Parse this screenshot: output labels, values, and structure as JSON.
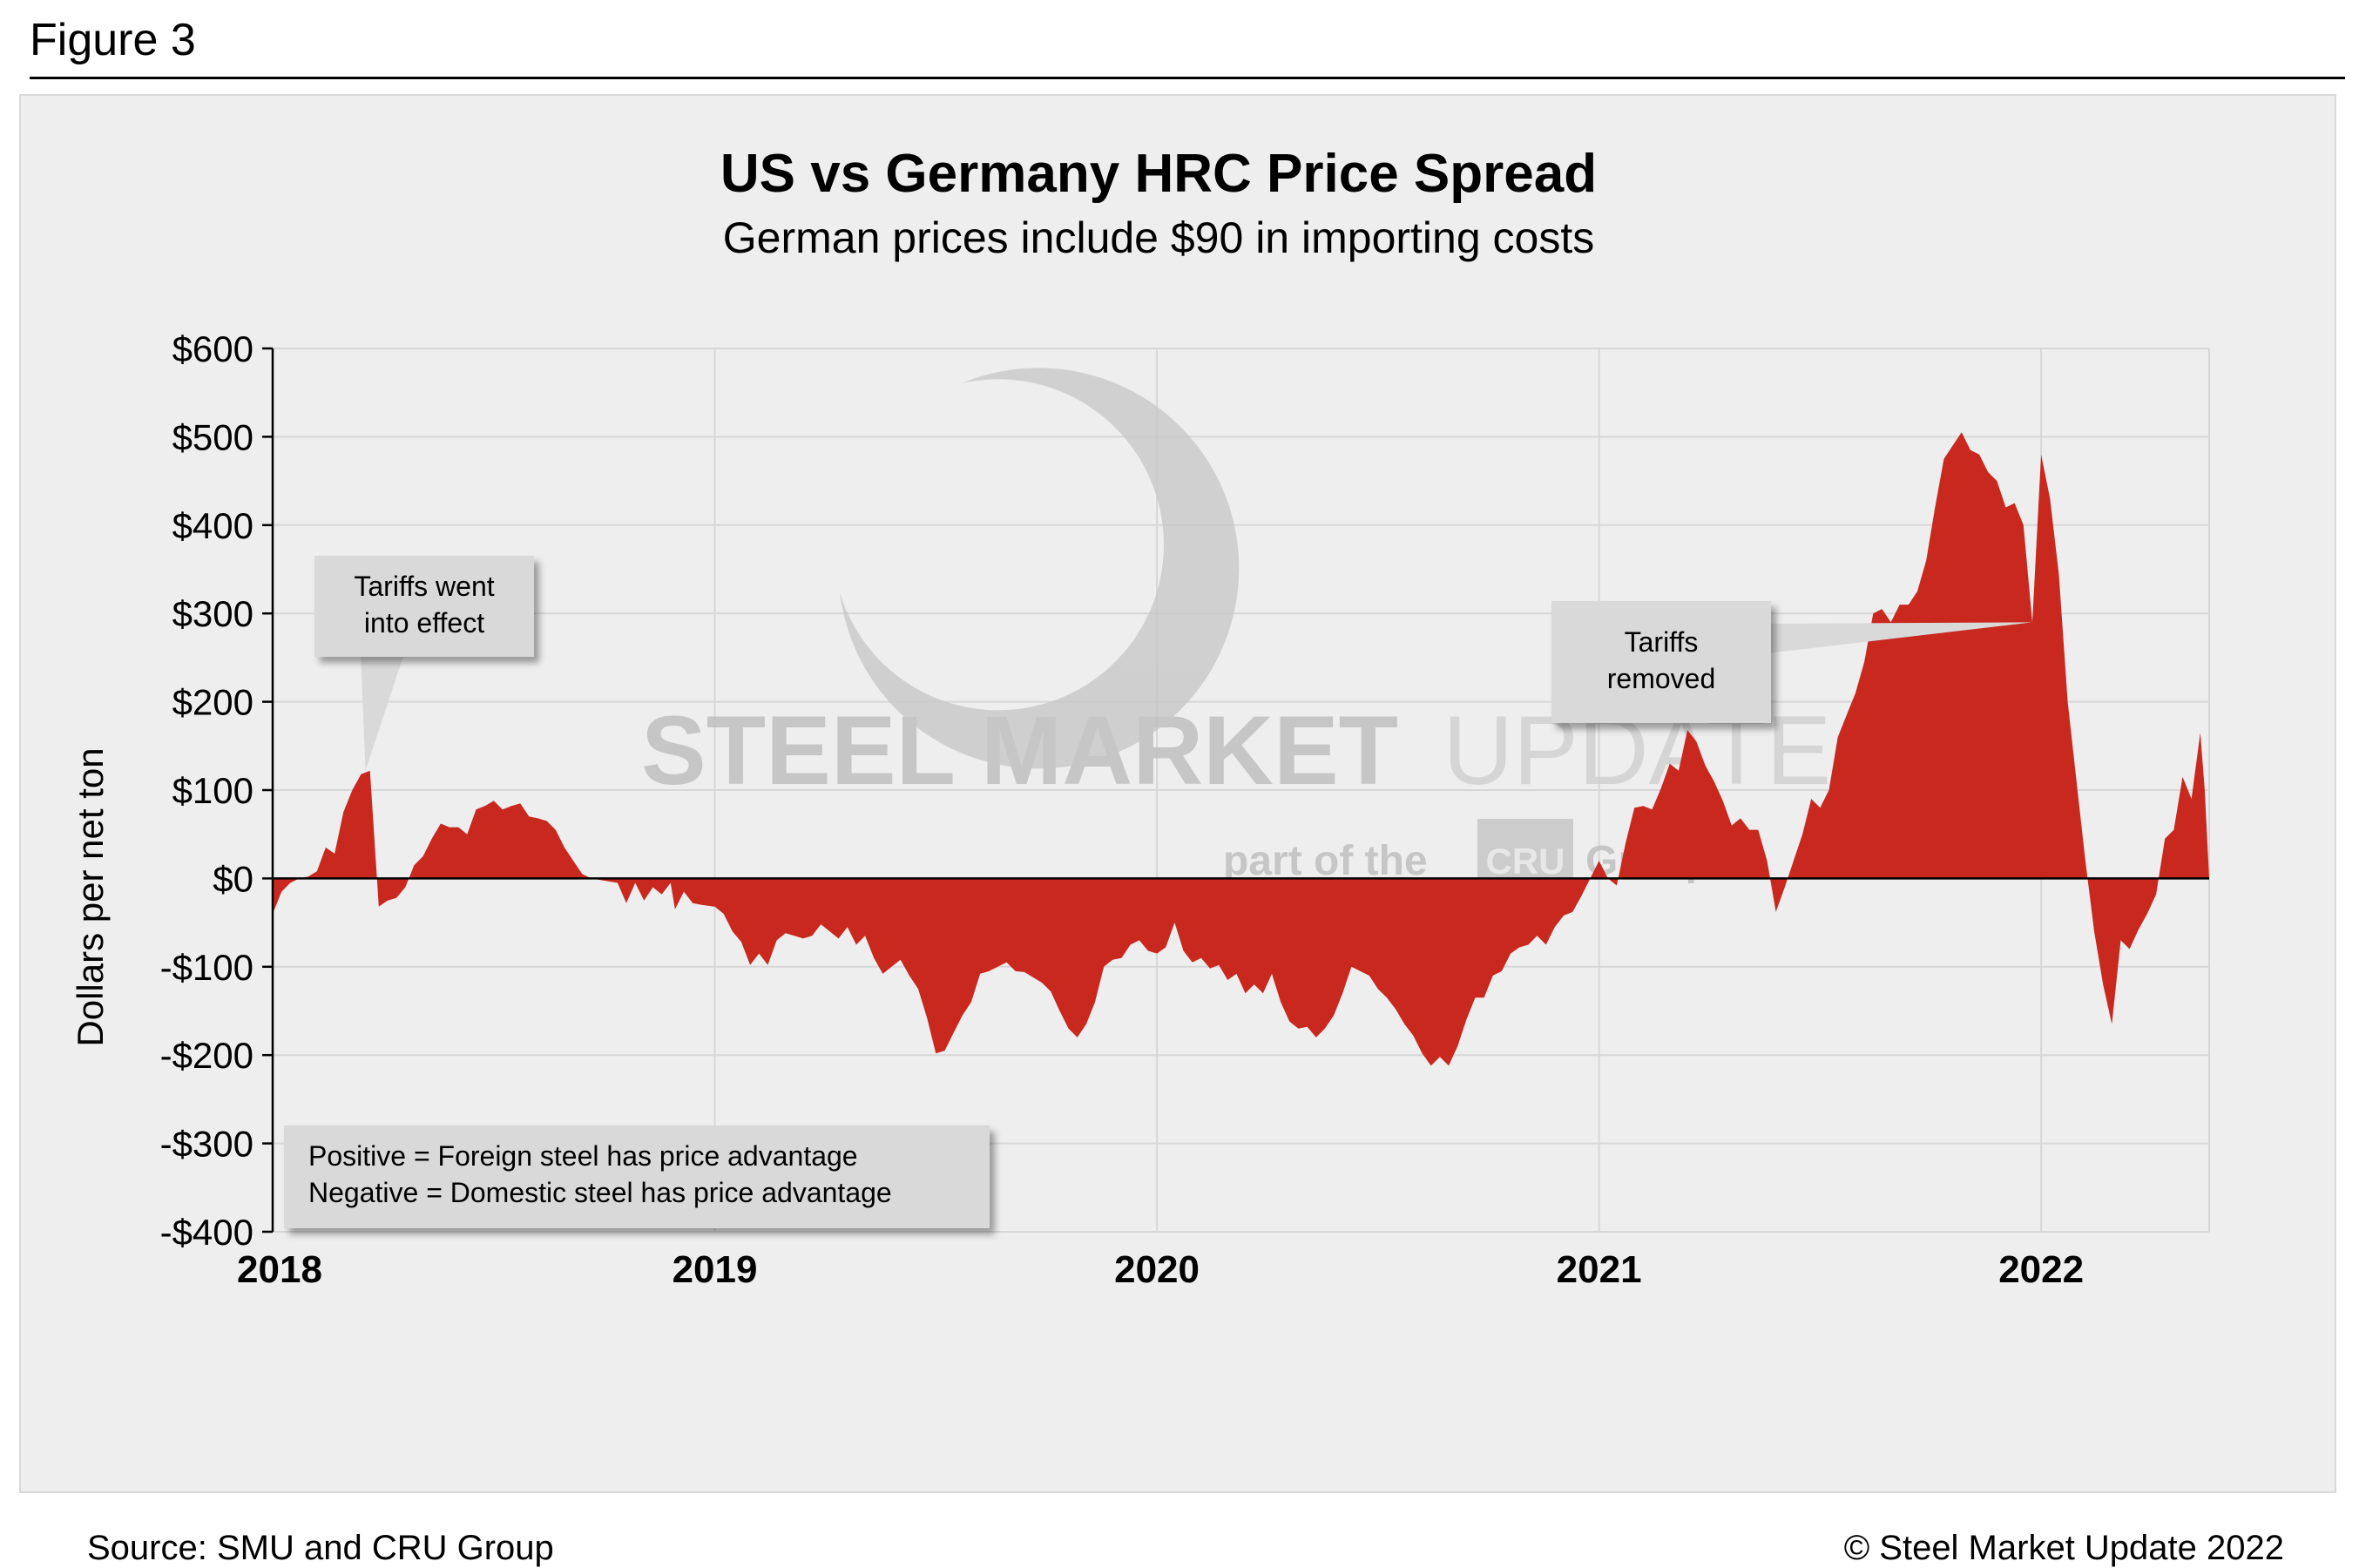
{
  "figure_label": "Figure 3",
  "source": "Source: SMU and CRU Group",
  "copyright": "© Steel Market Update 2022",
  "watermark": {
    "line1_bold": "STEEL MARKET",
    "line1_light": "UPDATE",
    "line2_pre": "part of the",
    "line2_logo": "CRU",
    "line2_post": "Group"
  },
  "colors": {
    "fill": "#c8281e",
    "panel": "#eeeeee",
    "grid": "#d7d7d7",
    "callout": "#d9d9d9"
  },
  "chart_data": {
    "type": "area",
    "title": "US vs Germany HRC Price Spread",
    "subtitle": "German prices include $90 in importing costs",
    "ylabel": "Dollars per net ton",
    "xlabel": "",
    "ylim": [
      -400,
      600
    ],
    "xlim": [
      2018.0,
      2022.38
    ],
    "grid": true,
    "y_ticks": [
      {
        "v": 600,
        "label": "$600"
      },
      {
        "v": 500,
        "label": "$500"
      },
      {
        "v": 400,
        "label": "$400"
      },
      {
        "v": 300,
        "label": "$300"
      },
      {
        "v": 200,
        "label": "$200"
      },
      {
        "v": 100,
        "label": "$100"
      },
      {
        "v": 0,
        "label": "$0"
      },
      {
        "v": -100,
        "label": "-$100"
      },
      {
        "v": -200,
        "label": "-$200"
      },
      {
        "v": -300,
        "label": "-$300"
      },
      {
        "v": -400,
        "label": "-$400"
      }
    ],
    "x_ticks": [
      {
        "v": 2018,
        "label": "2018"
      },
      {
        "v": 2019,
        "label": "2019"
      },
      {
        "v": 2020,
        "label": "2020"
      },
      {
        "v": 2021,
        "label": "2021"
      },
      {
        "v": 2022,
        "label": "2022"
      }
    ],
    "series": [
      {
        "name": "US vs Germany HRC price spread",
        "points": [
          [
            2018.0,
            -40
          ],
          [
            2018.02,
            -15
          ],
          [
            2018.04,
            -5
          ],
          [
            2018.06,
            0
          ],
          [
            2018.08,
            2
          ],
          [
            2018.1,
            8
          ],
          [
            2018.12,
            35
          ],
          [
            2018.14,
            28
          ],
          [
            2018.16,
            75
          ],
          [
            2018.18,
            100
          ],
          [
            2018.2,
            118
          ],
          [
            2018.22,
            122
          ],
          [
            2018.24,
            -32
          ],
          [
            2018.26,
            -25
          ],
          [
            2018.28,
            -22
          ],
          [
            2018.3,
            -10
          ],
          [
            2018.32,
            15
          ],
          [
            2018.34,
            25
          ],
          [
            2018.36,
            45
          ],
          [
            2018.38,
            62
          ],
          [
            2018.4,
            58
          ],
          [
            2018.42,
            58
          ],
          [
            2018.44,
            50
          ],
          [
            2018.46,
            78
          ],
          [
            2018.48,
            82
          ],
          [
            2018.5,
            88
          ],
          [
            2018.52,
            78
          ],
          [
            2018.54,
            82
          ],
          [
            2018.56,
            85
          ],
          [
            2018.58,
            70
          ],
          [
            2018.6,
            68
          ],
          [
            2018.62,
            65
          ],
          [
            2018.64,
            55
          ],
          [
            2018.66,
            35
          ],
          [
            2018.68,
            20
          ],
          [
            2018.7,
            5
          ],
          [
            2018.72,
            0
          ],
          [
            2018.78,
            -5
          ],
          [
            2018.8,
            -28
          ],
          [
            2018.82,
            -5
          ],
          [
            2018.84,
            -25
          ],
          [
            2018.86,
            -10
          ],
          [
            2018.88,
            -18
          ],
          [
            2018.9,
            -5
          ],
          [
            2018.91,
            -35
          ],
          [
            2018.93,
            -15
          ],
          [
            2018.95,
            -28
          ],
          [
            2018.97,
            -30
          ],
          [
            2019.0,
            -32
          ],
          [
            2019.02,
            -40
          ],
          [
            2019.04,
            -60
          ],
          [
            2019.06,
            -72
          ],
          [
            2019.08,
            -98
          ],
          [
            2019.1,
            -85
          ],
          [
            2019.12,
            -98
          ],
          [
            2019.14,
            -70
          ],
          [
            2019.16,
            -62
          ],
          [
            2019.18,
            -65
          ],
          [
            2019.2,
            -68
          ],
          [
            2019.22,
            -65
          ],
          [
            2019.24,
            -52
          ],
          [
            2019.26,
            -60
          ],
          [
            2019.28,
            -68
          ],
          [
            2019.3,
            -55
          ],
          [
            2019.32,
            -75
          ],
          [
            2019.34,
            -65
          ],
          [
            2019.36,
            -90
          ],
          [
            2019.38,
            -108
          ],
          [
            2019.4,
            -100
          ],
          [
            2019.42,
            -92
          ],
          [
            2019.44,
            -110
          ],
          [
            2019.46,
            -125
          ],
          [
            2019.48,
            -158
          ],
          [
            2019.5,
            -198
          ],
          [
            2019.52,
            -195
          ],
          [
            2019.54,
            -175
          ],
          [
            2019.56,
            -155
          ],
          [
            2019.58,
            -140
          ],
          [
            2019.6,
            -108
          ],
          [
            2019.62,
            -105
          ],
          [
            2019.64,
            -100
          ],
          [
            2019.66,
            -95
          ],
          [
            2019.68,
            -105
          ],
          [
            2019.7,
            -106
          ],
          [
            2019.72,
            -112
          ],
          [
            2019.74,
            -118
          ],
          [
            2019.76,
            -128
          ],
          [
            2019.78,
            -150
          ],
          [
            2019.8,
            -170
          ],
          [
            2019.82,
            -180
          ],
          [
            2019.84,
            -165
          ],
          [
            2019.86,
            -140
          ],
          [
            2019.88,
            -100
          ],
          [
            2019.9,
            -92
          ],
          [
            2019.92,
            -90
          ],
          [
            2019.94,
            -75
          ],
          [
            2019.96,
            -70
          ],
          [
            2019.98,
            -82
          ],
          [
            2020.0,
            -85
          ],
          [
            2020.02,
            -78
          ],
          [
            2020.04,
            -50
          ],
          [
            2020.06,
            -82
          ],
          [
            2020.08,
            -95
          ],
          [
            2020.1,
            -90
          ],
          [
            2020.12,
            -102
          ],
          [
            2020.14,
            -98
          ],
          [
            2020.16,
            -115
          ],
          [
            2020.18,
            -108
          ],
          [
            2020.2,
            -130
          ],
          [
            2020.22,
            -120
          ],
          [
            2020.24,
            -130
          ],
          [
            2020.26,
            -108
          ],
          [
            2020.28,
            -140
          ],
          [
            2020.3,
            -162
          ],
          [
            2020.32,
            -170
          ],
          [
            2020.34,
            -168
          ],
          [
            2020.36,
            -180
          ],
          [
            2020.38,
            -170
          ],
          [
            2020.4,
            -155
          ],
          [
            2020.42,
            -130
          ],
          [
            2020.44,
            -100
          ],
          [
            2020.46,
            -105
          ],
          [
            2020.48,
            -110
          ],
          [
            2020.5,
            -125
          ],
          [
            2020.52,
            -135
          ],
          [
            2020.54,
            -148
          ],
          [
            2020.56,
            -165
          ],
          [
            2020.58,
            -178
          ],
          [
            2020.6,
            -198
          ],
          [
            2020.62,
            -212
          ],
          [
            2020.64,
            -202
          ],
          [
            2020.66,
            -212
          ],
          [
            2020.68,
            -190
          ],
          [
            2020.7,
            -160
          ],
          [
            2020.72,
            -135
          ],
          [
            2020.74,
            -135
          ],
          [
            2020.76,
            -110
          ],
          [
            2020.78,
            -105
          ],
          [
            2020.8,
            -85
          ],
          [
            2020.82,
            -78
          ],
          [
            2020.84,
            -75
          ],
          [
            2020.86,
            -65
          ],
          [
            2020.88,
            -75
          ],
          [
            2020.9,
            -55
          ],
          [
            2020.92,
            -42
          ],
          [
            2020.94,
            -38
          ],
          [
            2020.96,
            -20
          ],
          [
            2020.98,
            0
          ],
          [
            2021.0,
            20
          ],
          [
            2021.02,
            0
          ],
          [
            2021.04,
            -8
          ],
          [
            2021.06,
            40
          ],
          [
            2021.08,
            80
          ],
          [
            2021.1,
            82
          ],
          [
            2021.12,
            78
          ],
          [
            2021.14,
            102
          ],
          [
            2021.16,
            130
          ],
          [
            2021.18,
            122
          ],
          [
            2021.2,
            168
          ],
          [
            2021.22,
            155
          ],
          [
            2021.24,
            128
          ],
          [
            2021.26,
            110
          ],
          [
            2021.28,
            88
          ],
          [
            2021.3,
            60
          ],
          [
            2021.32,
            68
          ],
          [
            2021.34,
            55
          ],
          [
            2021.36,
            55
          ],
          [
            2021.38,
            20
          ],
          [
            2021.4,
            -38
          ],
          [
            2021.42,
            -10
          ],
          [
            2021.44,
            20
          ],
          [
            2021.46,
            50
          ],
          [
            2021.48,
            90
          ],
          [
            2021.5,
            80
          ],
          [
            2021.52,
            100
          ],
          [
            2021.54,
            160
          ],
          [
            2021.56,
            185
          ],
          [
            2021.58,
            210
          ],
          [
            2021.6,
            245
          ],
          [
            2021.62,
            300
          ],
          [
            2021.64,
            305
          ],
          [
            2021.66,
            290
          ],
          [
            2021.68,
            310
          ],
          [
            2021.7,
            310
          ],
          [
            2021.72,
            325
          ],
          [
            2021.74,
            360
          ],
          [
            2021.76,
            420
          ],
          [
            2021.78,
            475
          ],
          [
            2021.8,
            490
          ],
          [
            2021.82,
            505
          ],
          [
            2021.84,
            485
          ],
          [
            2021.86,
            480
          ],
          [
            2021.88,
            460
          ],
          [
            2021.9,
            450
          ],
          [
            2021.92,
            420
          ],
          [
            2021.94,
            425
          ],
          [
            2021.96,
            400
          ],
          [
            2021.98,
            290
          ],
          [
            2022.0,
            480
          ],
          [
            2022.02,
            430
          ],
          [
            2022.04,
            345
          ],
          [
            2022.06,
            200
          ],
          [
            2022.08,
            110
          ],
          [
            2022.1,
            20
          ],
          [
            2022.12,
            -60
          ],
          [
            2022.14,
            -120
          ],
          [
            2022.16,
            -165
          ],
          [
            2022.18,
            -70
          ],
          [
            2022.2,
            -80
          ],
          [
            2022.22,
            -58
          ],
          [
            2022.24,
            -40
          ],
          [
            2022.26,
            -18
          ],
          [
            2022.28,
            45
          ],
          [
            2022.3,
            55
          ],
          [
            2022.32,
            115
          ],
          [
            2022.34,
            90
          ],
          [
            2022.36,
            165
          ],
          [
            2022.37,
            100
          ],
          [
            2022.38,
            0
          ]
        ]
      }
    ],
    "annotations": [
      {
        "label": "tariffs-went-into-effect",
        "text": [
          "Tariffs went",
          "into effect"
        ],
        "target_x": 2018.21,
        "target_y": 122
      },
      {
        "label": "tariffs-removed",
        "text": [
          "Tariffs",
          "removed"
        ],
        "target_x": 2021.98,
        "target_y": 290
      }
    ],
    "legend_box": {
      "lines": [
        "Positive = Foreign steel has price advantage",
        "Negative = Domestic steel has price advantage"
      ],
      "placement": "bottom-left"
    }
  }
}
